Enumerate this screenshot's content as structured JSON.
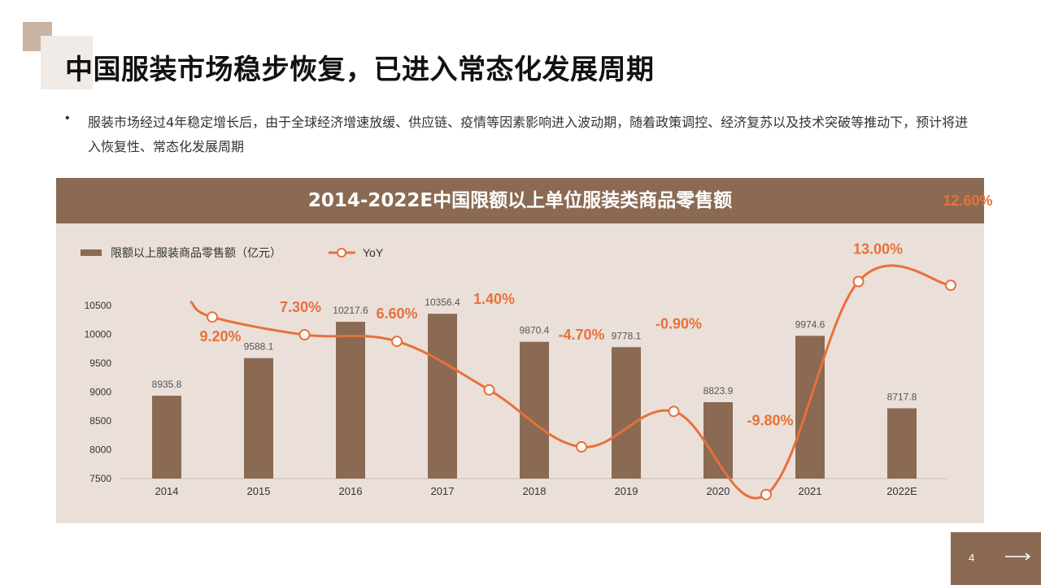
{
  "page": {
    "title": "中国服装市场稳步恢复，已进入常态化发展周期",
    "bullet_symbol": "•",
    "description": "服装市场经过4年稳定增长后，由于全球经济增速放缓、供应链、疫情等因素影响进入波动期，随着政策调控、经济复苏以及技术突破等推动下，预计将进入恢复性、常态化发展周期",
    "page_number": "4"
  },
  "colors": {
    "accent_brown": "#8b6a53",
    "panel_bg": "#eae0d9",
    "line_orange": "#e8703a",
    "bar_fill": "#8b6a53"
  },
  "chart_data": {
    "type": "bar",
    "title": "2014-2022E中国限额以上单位服装类商品零售额",
    "categories": [
      "2014",
      "2015",
      "2016",
      "2017",
      "2018",
      "2019",
      "2020",
      "2021",
      "2022E"
    ],
    "series": [
      {
        "name": "限额以上服装商品零售额（亿元）",
        "type": "bar",
        "values": [
          8935.8,
          9588.1,
          10217.6,
          10356.4,
          9870.4,
          9778.1,
          8823.9,
          9974.6,
          8717.8
        ],
        "value_labels": [
          "8935.8",
          "9588.1",
          "10217.6",
          "10356.4",
          "9870.4",
          "9778.1",
          "8823.9",
          "9974.6",
          "8717.8"
        ]
      },
      {
        "name": "YoY",
        "type": "line",
        "values": [
          9.2,
          7.3,
          6.6,
          1.4,
          -4.7,
          -0.9,
          -9.8,
          13.0,
          12.6
        ],
        "value_labels": [
          "9.20%",
          "7.30%",
          "6.60%",
          "1.40%",
          "-4.70%",
          "-0.90%",
          "-9.80%",
          "13.00%",
          "12.60%"
        ]
      }
    ],
    "y_ticks": [
      "10500",
      "10000",
      "9500",
      "9000",
      "8500",
      "8000",
      "7500"
    ],
    "ylim": [
      7500,
      10500
    ],
    "legend_position": "top-left",
    "grid": false
  }
}
